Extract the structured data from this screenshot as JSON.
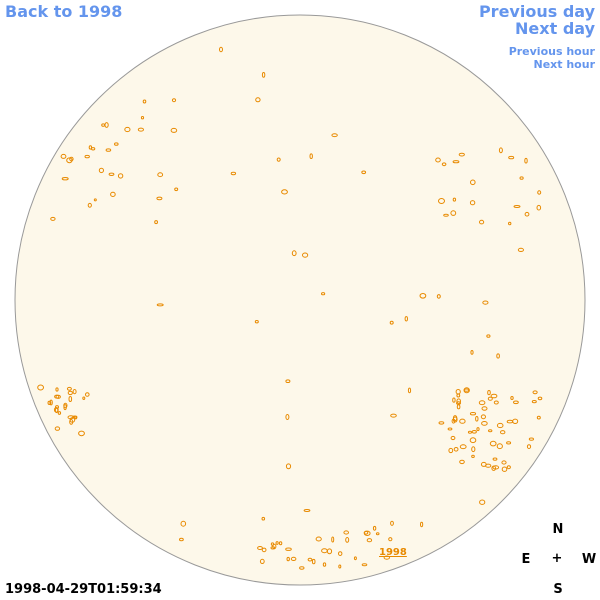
{
  "links": {
    "back": "Back to 1998",
    "previous_day": "Previous day",
    "next_day": "Next day",
    "previous_hour": "Previous hour",
    "next_hour": "Next hour"
  },
  "image_label": "1998",
  "timestamp": "1998-04-29T01:59:34",
  "compass": {
    "north": "N",
    "east": "E",
    "center": "+",
    "west": "W",
    "south": "S"
  }
}
